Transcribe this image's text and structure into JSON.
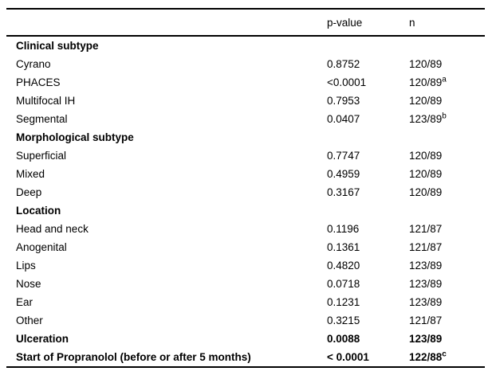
{
  "table": {
    "columns": [
      "p-value",
      "n"
    ],
    "rows": [
      {
        "label": "Clinical subtype",
        "bold": true,
        "p": "",
        "n": "",
        "sup": ""
      },
      {
        "label": "Cyrano",
        "bold": false,
        "p": "0.8752",
        "n": "120/89",
        "sup": ""
      },
      {
        "label": "PHACES",
        "bold": false,
        "p": "<0.0001",
        "n": "120/89",
        "sup": "a"
      },
      {
        "label": "Multifocal IH",
        "bold": false,
        "p": "0.7953",
        "n": "120/89",
        "sup": ""
      },
      {
        "label": "Segmental",
        "bold": false,
        "p": "0.0407",
        "n": "123/89",
        "sup": "b"
      },
      {
        "label": "Morphological subtype",
        "bold": true,
        "p": "",
        "n": "",
        "sup": ""
      },
      {
        "label": "Superficial",
        "bold": false,
        "p": "0.7747",
        "n": "120/89",
        "sup": ""
      },
      {
        "label": "Mixed",
        "bold": false,
        "p": "0.4959",
        "n": "120/89",
        "sup": ""
      },
      {
        "label": "Deep",
        "bold": false,
        "p": "0.3167",
        "n": "120/89",
        "sup": ""
      },
      {
        "label": "Location",
        "bold": true,
        "p": "",
        "n": "",
        "sup": ""
      },
      {
        "label": "Head and neck",
        "bold": false,
        "p": "0.1196",
        "n": "121/87",
        "sup": ""
      },
      {
        "label": "Anogenital",
        "bold": false,
        "p": "0.1361",
        "n": "121/87",
        "sup": ""
      },
      {
        "label": "Lips",
        "bold": false,
        "p": "0.4820",
        "n": "123/89",
        "sup": ""
      },
      {
        "label": "Nose",
        "bold": false,
        "p": "0.0718",
        "n": "123/89",
        "sup": ""
      },
      {
        "label": "Ear",
        "bold": false,
        "p": "0.1231",
        "n": "123/89",
        "sup": ""
      },
      {
        "label": "Other",
        "bold": false,
        "p": "0.3215",
        "n": "121/87",
        "sup": ""
      },
      {
        "label": "Ulceration",
        "bold": true,
        "p": "0.0088",
        "n": "123/89",
        "sup": ""
      },
      {
        "label": "Start of Propranolol (before or after 5 months)",
        "bold": true,
        "p": "< 0.0001",
        "n": "122/88",
        "sup": "c"
      }
    ],
    "colors": {
      "border": "#000000",
      "text": "#000000",
      "background": "#ffffff"
    }
  }
}
